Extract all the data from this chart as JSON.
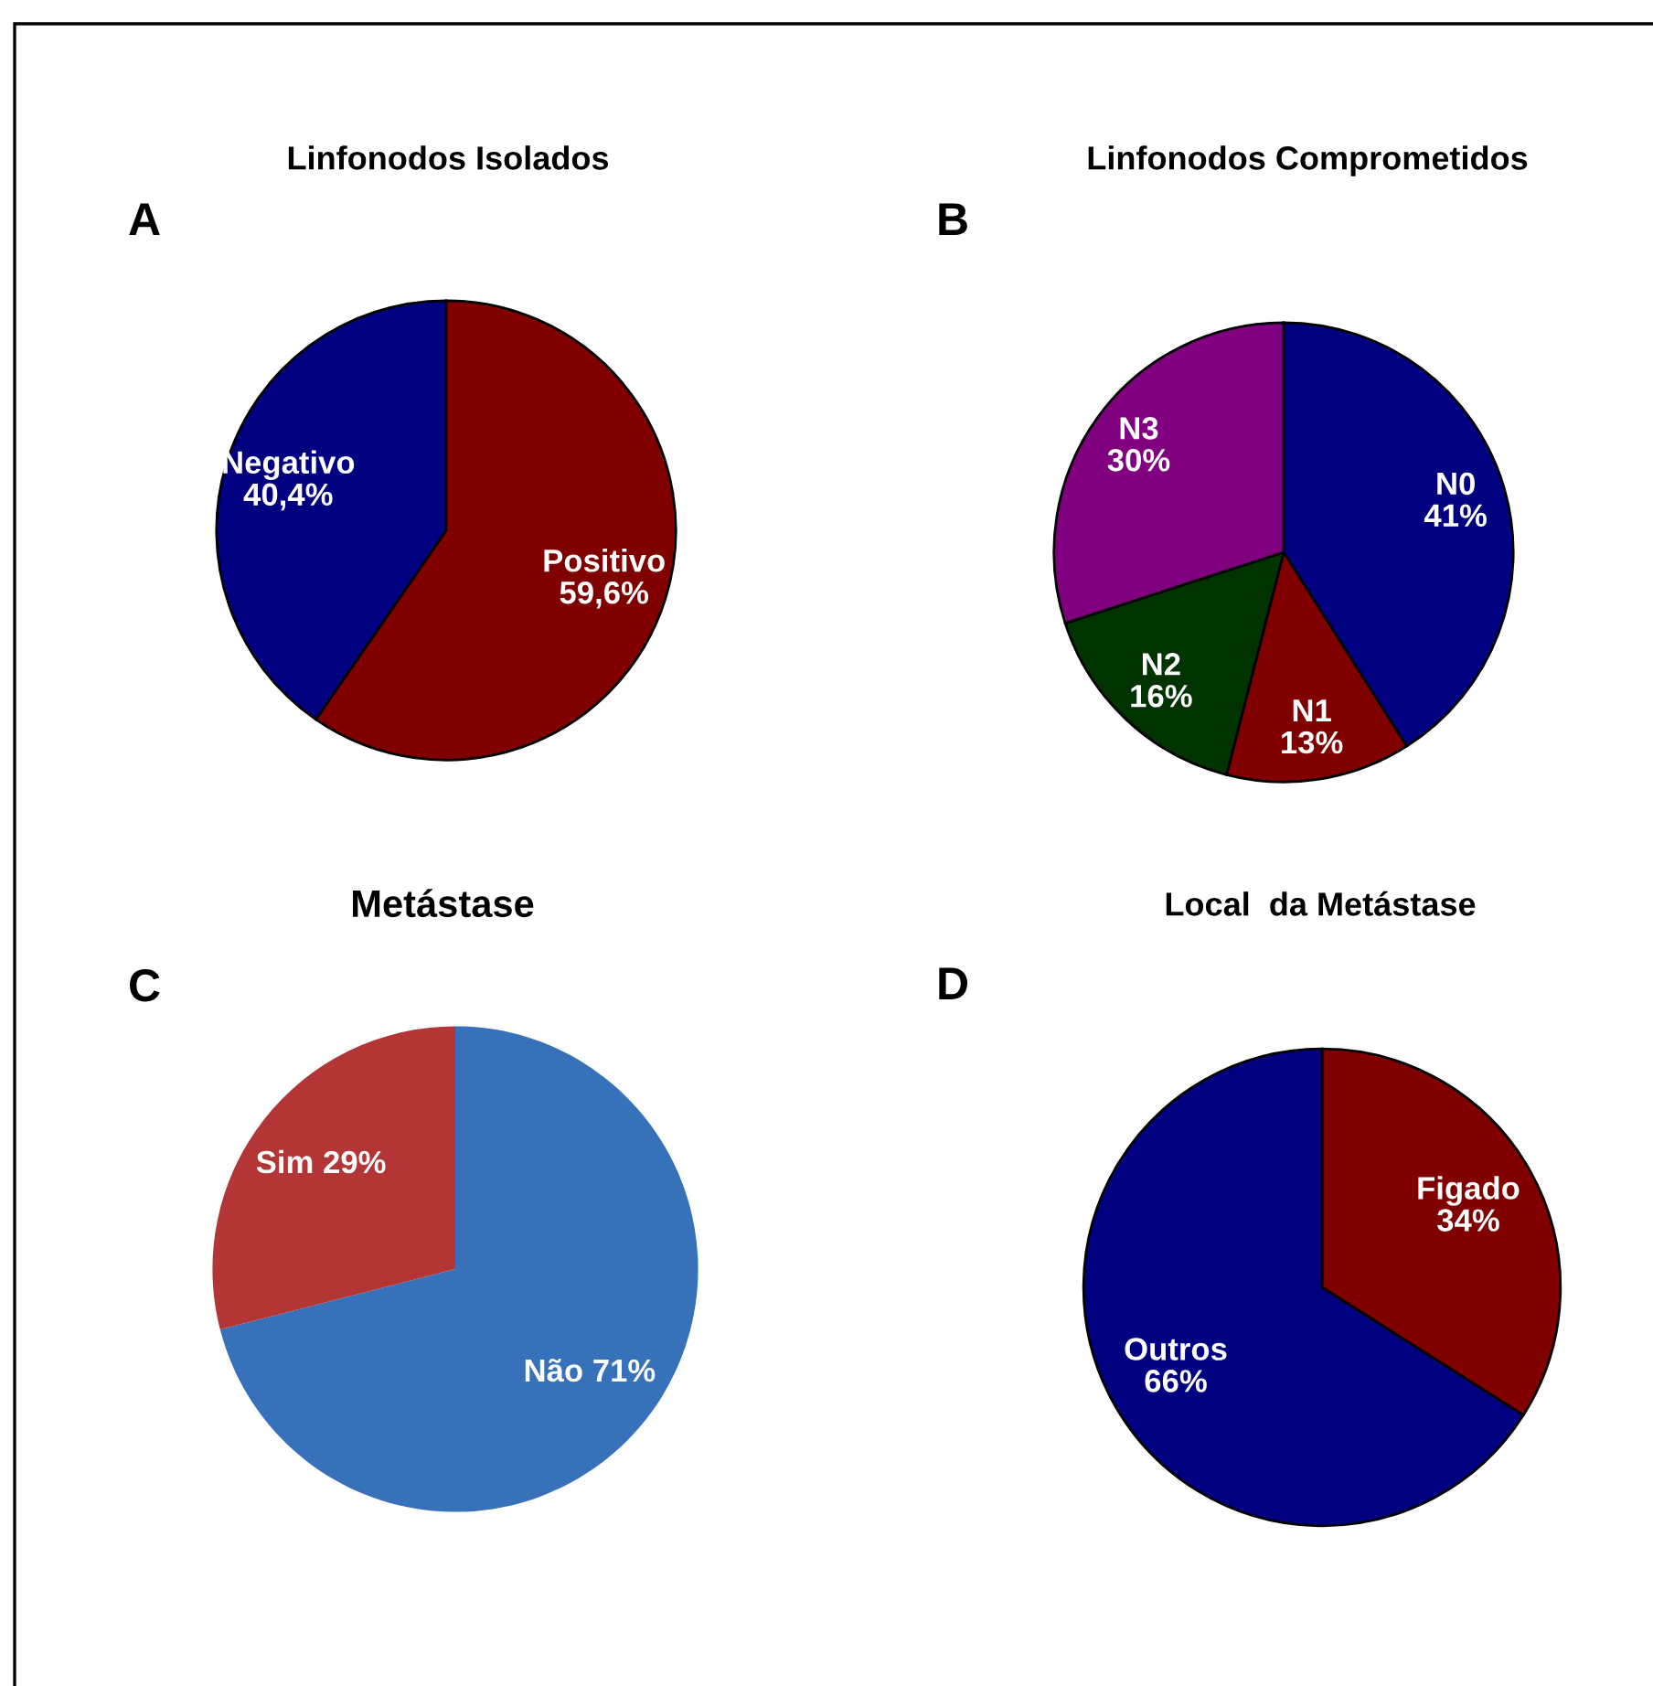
{
  "chart_data": [
    {
      "type": "pie",
      "title": "Linfonodos Isolados",
      "annotations": [
        "A"
      ],
      "categories": [
        "Positivo",
        "Negativo"
      ],
      "values": [
        59.6,
        40.4
      ],
      "value_labels": [
        "59,6%",
        "40,4%"
      ],
      "colors": [
        "#800000",
        "#000080"
      ]
    },
    {
      "type": "pie",
      "title": "Linfonodos Comprometidos",
      "annotations": [
        "B"
      ],
      "categories": [
        "N0",
        "N1",
        "N2",
        "N3"
      ],
      "values": [
        41,
        13,
        16,
        30
      ],
      "value_labels": [
        "41%",
        "13%",
        "16%",
        "30%"
      ],
      "colors": [
        "#000080",
        "#800000",
        "#003300",
        "#800080"
      ]
    },
    {
      "type": "pie",
      "title": "Metástase",
      "annotations": [
        "C"
      ],
      "categories": [
        "Não",
        "Sim"
      ],
      "values": [
        71,
        29
      ],
      "value_labels": [
        "71%",
        "29%"
      ],
      "colors": [
        "#3671b9",
        "#b33535"
      ]
    },
    {
      "type": "pie",
      "title": "Local  da Metástase",
      "annotations": [
        "D"
      ],
      "categories": [
        "Figado",
        "Outros"
      ],
      "values": [
        34,
        66
      ],
      "value_labels": [
        "34%",
        "66%"
      ],
      "colors": [
        "#800000",
        "#000080"
      ]
    }
  ]
}
